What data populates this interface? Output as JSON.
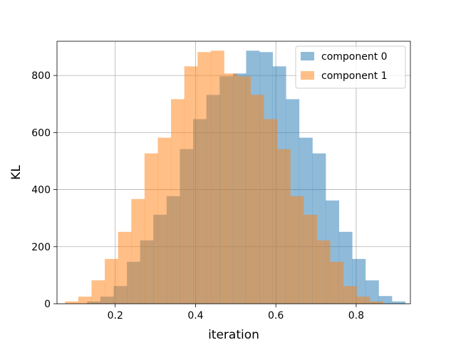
{
  "chart_data": {
    "type": "bar",
    "histogram": true,
    "xlabel": "iteration",
    "ylabel": "KL",
    "xlim": [
      0.055,
      0.935
    ],
    "ylim": [
      0,
      920
    ],
    "xticks": [
      0.2,
      0.4,
      0.6,
      0.8
    ],
    "xtick_labels": [
      "0.2",
      "0.4",
      "0.6",
      "0.8"
    ],
    "yticks": [
      0,
      200,
      400,
      600,
      800
    ],
    "ytick_labels": [
      "0",
      "200",
      "400",
      "600",
      "800"
    ],
    "grid": true,
    "legend_position": "top-right",
    "series": [
      {
        "name": "component 0",
        "color": "#1f77b4",
        "opacity": 0.5,
        "bins": [
          0.13,
          0.163,
          0.196,
          0.229,
          0.262,
          0.295,
          0.328,
          0.361,
          0.394,
          0.427,
          0.46,
          0.493,
          0.526,
          0.559,
          0.592,
          0.625,
          0.658,
          0.691,
          0.724,
          0.757,
          0.79,
          0.823,
          0.856,
          0.889,
          0.922
        ],
        "values": [
          8,
          25,
          62,
          147,
          222,
          312,
          377,
          542,
          647,
          732,
          797,
          807,
          887,
          882,
          832,
          717,
          582,
          527,
          362,
          252,
          157,
          82,
          27,
          8
        ]
      },
      {
        "name": "component 1",
        "color": "#ff7f0e",
        "opacity": 0.5,
        "bins": [
          0.075,
          0.108,
          0.141,
          0.174,
          0.207,
          0.24,
          0.273,
          0.306,
          0.339,
          0.372,
          0.405,
          0.438,
          0.471,
          0.504,
          0.537,
          0.57,
          0.603,
          0.636,
          0.669,
          0.702,
          0.735,
          0.768,
          0.801,
          0.834,
          0.867
        ],
        "values": [
          8,
          25,
          82,
          157,
          252,
          367,
          527,
          582,
          717,
          832,
          882,
          887,
          807,
          797,
          732,
          647,
          542,
          377,
          312,
          222,
          147,
          62,
          25,
          8
        ]
      }
    ]
  }
}
